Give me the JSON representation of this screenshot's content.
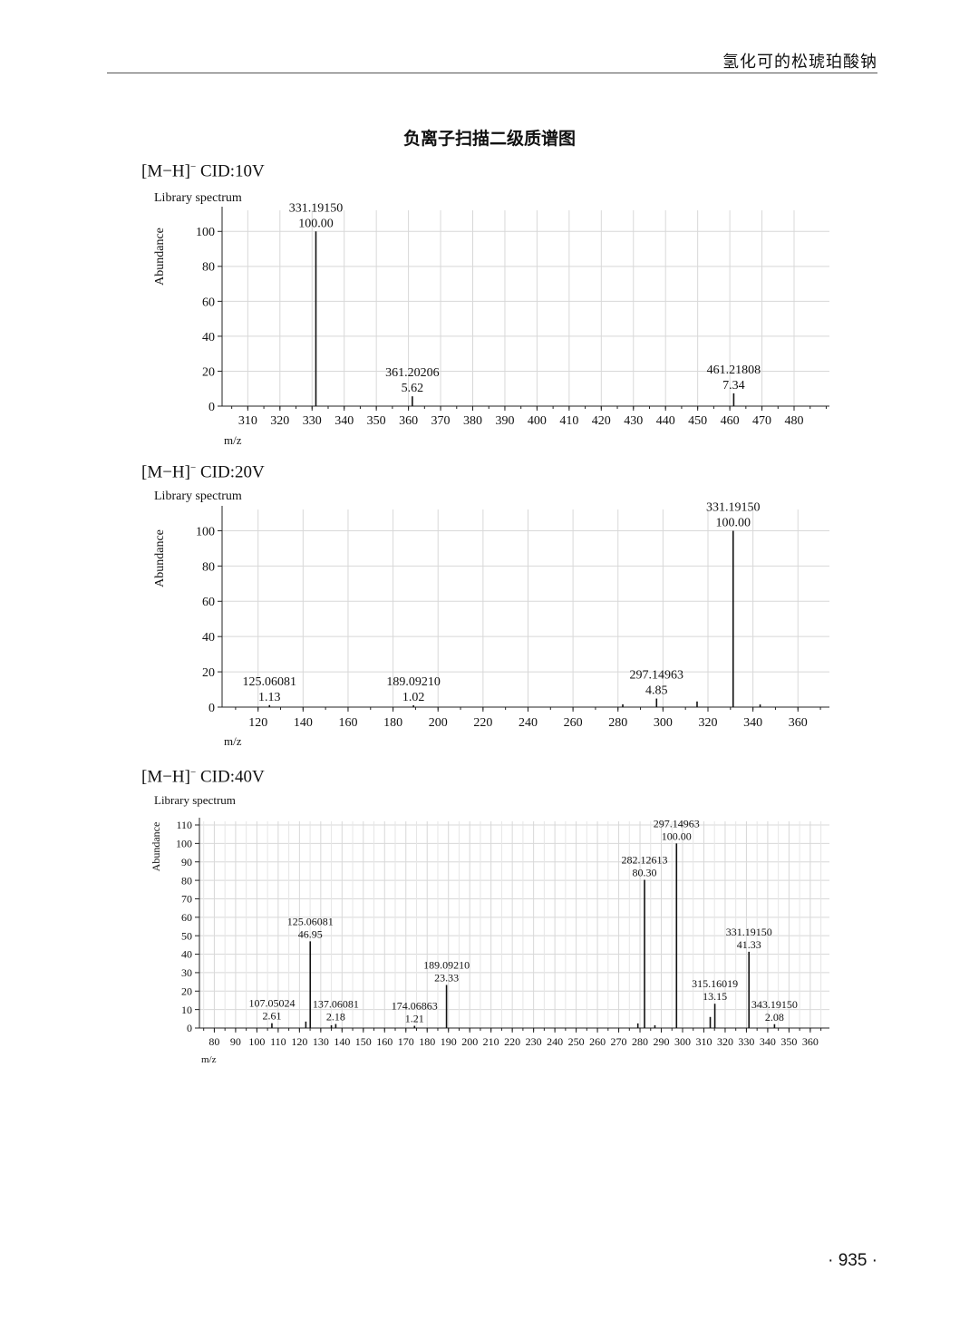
{
  "header": {
    "running_title": "氢化可的松琥珀酸钠"
  },
  "page_heading": "负离子扫描二级质谱图",
  "page_number": "935",
  "chart_data": [
    {
      "type": "bar",
      "label_prefix": "[M−H]",
      "label_sup": "−",
      "label_suffix": " CID:10V",
      "subtitle": "Library spectrum",
      "ylabel": "Abundance",
      "xlabel": "m/z",
      "xlim": [
        302,
        491
      ],
      "ylim": [
        0,
        110
      ],
      "xticks": [
        310,
        320,
        330,
        340,
        350,
        360,
        370,
        380,
        390,
        400,
        410,
        420,
        430,
        440,
        450,
        460,
        470,
        480
      ],
      "yticks": [
        0,
        20,
        40,
        60,
        80,
        100
      ],
      "grid": true,
      "peaks": [
        {
          "mz": 331.1915,
          "intensity": 100.0,
          "mz_label": "331.19150",
          "int_label": "100.00"
        },
        {
          "mz": 361.20206,
          "intensity": 5.62,
          "mz_label": "361.20206",
          "int_label": "5.62"
        },
        {
          "mz": 461.21808,
          "intensity": 7.34,
          "mz_label": "461.21808",
          "int_label": "7.34"
        }
      ]
    },
    {
      "type": "bar",
      "label_prefix": "[M−H]",
      "label_sup": "−",
      "label_suffix": " CID:20V",
      "subtitle": "Library spectrum",
      "ylabel": "Abundance",
      "xlabel": "m/z",
      "xlim": [
        104,
        374
      ],
      "ylim": [
        0,
        110
      ],
      "xticks": [
        120,
        140,
        160,
        180,
        200,
        220,
        240,
        260,
        280,
        300,
        320,
        340,
        360
      ],
      "yticks": [
        0,
        20,
        40,
        60,
        80,
        100
      ],
      "grid": true,
      "peaks": [
        {
          "mz": 125.06081,
          "intensity": 1.13,
          "mz_label": "125.06081",
          "int_label": "1.13"
        },
        {
          "mz": 189.0921,
          "intensity": 1.02,
          "mz_label": "189.09210",
          "int_label": "1.02"
        },
        {
          "mz": 282.12613,
          "intensity": 1.6
        },
        {
          "mz": 297.14963,
          "intensity": 4.85,
          "mz_label": "297.14963",
          "int_label": "4.85"
        },
        {
          "mz": 315.16019,
          "intensity": 3.2
        },
        {
          "mz": 331.1915,
          "intensity": 100.0,
          "mz_label": "331.19150",
          "int_label": "100.00"
        },
        {
          "mz": 343.1915,
          "intensity": 1.5
        }
      ]
    },
    {
      "type": "bar",
      "label_prefix": "[M−H]",
      "label_sup": "−",
      "label_suffix": " CID:40V",
      "subtitle": "Library spectrum",
      "ylabel": "Abundance",
      "xlabel": "m/z",
      "xlim": [
        73,
        369
      ],
      "ylim": [
        0,
        110
      ],
      "xticks": [
        80,
        90,
        100,
        110,
        120,
        130,
        140,
        150,
        160,
        170,
        180,
        190,
        200,
        210,
        220,
        230,
        240,
        250,
        260,
        270,
        280,
        290,
        300,
        310,
        320,
        330,
        340,
        350,
        360
      ],
      "yticks": [
        0,
        10,
        20,
        30,
        40,
        50,
        60,
        70,
        80,
        90,
        100,
        110
      ],
      "grid": true,
      "peaks": [
        {
          "mz": 107.05024,
          "intensity": 2.61,
          "mz_label": "107.05024",
          "int_label": "2.61"
        },
        {
          "mz": 123.0,
          "intensity": 3.5
        },
        {
          "mz": 125.06081,
          "intensity": 46.95,
          "mz_label": "125.06081",
          "int_label": "46.95"
        },
        {
          "mz": 135.0,
          "intensity": 1.5
        },
        {
          "mz": 137.06081,
          "intensity": 2.18,
          "mz_label": "137.06081",
          "int_label": "2.18"
        },
        {
          "mz": 174.06863,
          "intensity": 1.21,
          "mz_label": "174.06863",
          "int_label": "1.21"
        },
        {
          "mz": 189.0921,
          "intensity": 23.33,
          "mz_label": "189.09210",
          "int_label": "23.33"
        },
        {
          "mz": 279.0,
          "intensity": 2.5
        },
        {
          "mz": 282.12613,
          "intensity": 80.3,
          "mz_label": "282.12613",
          "int_label": "80.30"
        },
        {
          "mz": 287.0,
          "intensity": 1.5
        },
        {
          "mz": 297.14963,
          "intensity": 100.0,
          "mz_label": "297.14963",
          "int_label": "100.00"
        },
        {
          "mz": 313.0,
          "intensity": 6.0
        },
        {
          "mz": 315.16019,
          "intensity": 13.15,
          "mz_label": "315.16019",
          "int_label": "13.15"
        },
        {
          "mz": 331.1915,
          "intensity": 41.33,
          "mz_label": "331.19150",
          "int_label": "41.33"
        },
        {
          "mz": 343.1915,
          "intensity": 2.08,
          "mz_label": "343.19150",
          "int_label": "2.08"
        }
      ]
    }
  ]
}
